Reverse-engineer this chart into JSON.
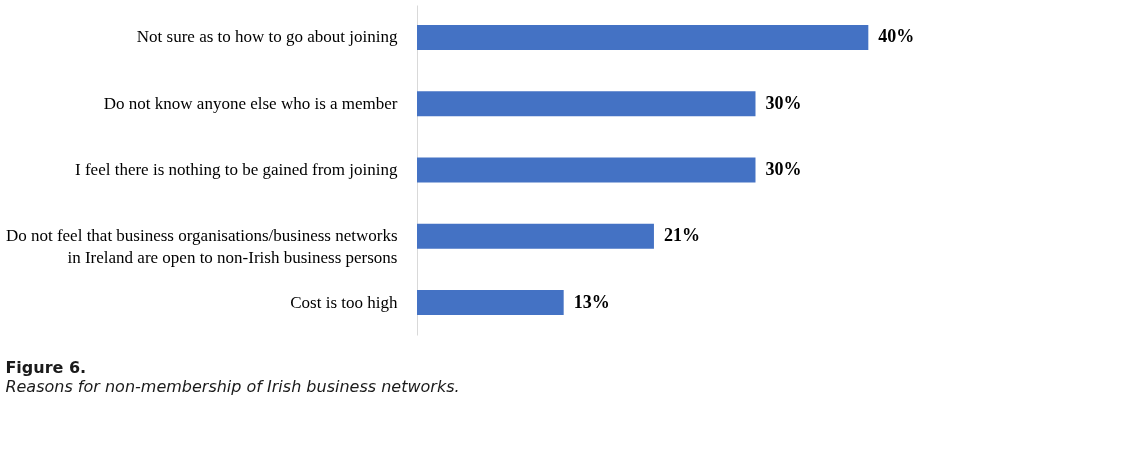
{
  "chart_data": {
    "type": "bar",
    "orientation": "horizontal",
    "categories": [
      "Not sure as to how to go about joining",
      "Do not know anyone else who is a member",
      "I feel there is nothing to be gained from joining",
      "Do not feel that business organisations/business networks\nin Ireland are open to non-Irish business persons",
      "Cost is too high"
    ],
    "values": [
      40,
      30,
      30,
      21,
      13
    ],
    "color": "#4472c4",
    "value_labels": [
      "40%",
      "30%",
      "30%",
      "21%",
      "13%"
    ],
    "annotations": [
      "Figure 6.",
      "Reasons for non-membership of Irish business networks."
    ]
  }
}
